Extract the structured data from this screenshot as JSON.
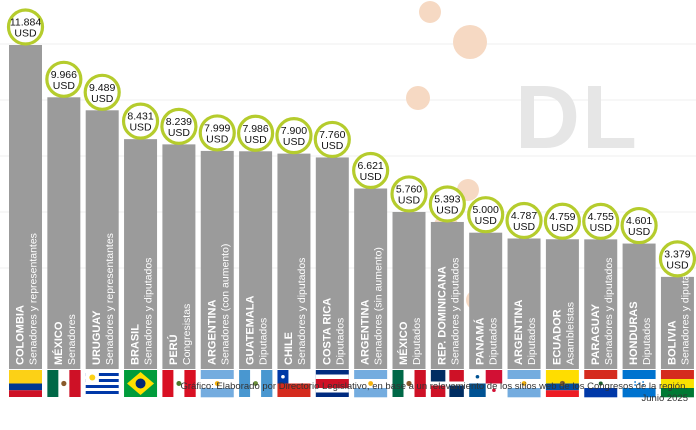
{
  "chart_data": {
    "type": "bar",
    "unit": "USD",
    "categories": [
      {
        "country": "COLOMBIA",
        "chamber": "Senadores y representantes",
        "value": 11884,
        "label": "11.884",
        "flag": "colombia"
      },
      {
        "country": "MÉXICO",
        "chamber": "Senadores",
        "value": 9966,
        "label": "9.966",
        "flag": "mexico"
      },
      {
        "country": "URUGUAY",
        "chamber": "Senadores y representantes",
        "value": 9489,
        "label": "9.489",
        "flag": "uruguay"
      },
      {
        "country": "BRASIL",
        "chamber": "Senadores y diputados",
        "value": 8431,
        "label": "8.431",
        "flag": "brasil"
      },
      {
        "country": "PERÚ",
        "chamber": "Congresistas",
        "value": 8239,
        "label": "8.239",
        "flag": "peru"
      },
      {
        "country": "ARGENTINA",
        "chamber": "Senadores (con aumento)",
        "value": 7999,
        "label": "7.999",
        "flag": "argentina"
      },
      {
        "country": "GUATEMALA",
        "chamber": "Diputados",
        "value": 7986,
        "label": "7.986",
        "flag": "guatemala"
      },
      {
        "country": "CHILE",
        "chamber": "Senadores y diputados",
        "value": 7900,
        "label": "7.900",
        "flag": "chile"
      },
      {
        "country": "COSTA RICA",
        "chamber": "Diputados",
        "value": 7760,
        "label": "7.760",
        "flag": "costarica"
      },
      {
        "country": "ARGENTINA",
        "chamber": "Senadores (sin aumento)",
        "value": 6621,
        "label": "6.621",
        "flag": "argentina"
      },
      {
        "country": "MÉXICO",
        "chamber": "Diputados",
        "value": 5760,
        "label": "5.760",
        "flag": "mexico"
      },
      {
        "country": "REP. DOMINICANA",
        "chamber": "Senadores y diputados",
        "value": 5393,
        "label": "5.393",
        "flag": "dominicana"
      },
      {
        "country": "PANAMÁ",
        "chamber": "Diputados",
        "value": 5000,
        "label": "5.000",
        "flag": "panama"
      },
      {
        "country": "ARGENTINA",
        "chamber": "Diputados",
        "value": 4787,
        "label": "4.787",
        "flag": "argentina"
      },
      {
        "country": "ECUADOR",
        "chamber": "Asambleístas",
        "value": 4759,
        "label": "4.759",
        "flag": "ecuador"
      },
      {
        "country": "PARAGUAY",
        "chamber": "Senadores y diputados",
        "value": 4755,
        "label": "4.755",
        "flag": "paraguay"
      },
      {
        "country": "HONDURAS",
        "chamber": "Diputados",
        "value": 4601,
        "label": "4.601",
        "flag": "honduras"
      },
      {
        "country": "BOLIVIA",
        "chamber": "Senadores y diputados",
        "value": 3379,
        "label": "3.379",
        "flag": "bolivia"
      }
    ],
    "ylim": [
      0,
      11884
    ],
    "grid": true,
    "colors": {
      "bar": "#9b9b9b",
      "bubble_ring": "#b5cc2d",
      "bubble_fill": "#ffffff",
      "label_text": "#111111",
      "bar_text": "#ffffff",
      "watermark": "#e6e6e6",
      "watermark_dots": "#f6d9c3"
    }
  },
  "watermark": {
    "text": "DL"
  },
  "source": {
    "line1": "Gráfico: Elaborado por Directorio Legislativo, en base a un relevamiento de los sitios web de los Congresos de la región.",
    "line2": "Junio 2025"
  }
}
